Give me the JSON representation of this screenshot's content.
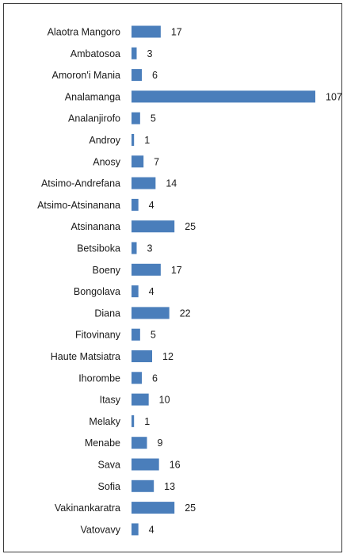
{
  "chart_data": {
    "type": "bar",
    "orientation": "horizontal",
    "title": "",
    "xlabel": "",
    "ylabel": "",
    "categories": [
      "Alaotra Mangoro",
      "Ambatosoa",
      "Amoron'i Mania",
      "Analamanga",
      "Analanjirofo",
      "Androy",
      "Anosy",
      "Atsimo-Andrefana",
      "Atsimo-Atsinanana",
      "Atsinanana",
      "Betsiboka",
      "Boeny",
      "Bongolava",
      "Diana",
      "Fitovinany",
      "Haute Matsiatra",
      "Ihorombe",
      "Itasy",
      "Melaky",
      "Menabe",
      "Sava",
      "Sofia",
      "Vakinankaratra",
      "Vatovavy"
    ],
    "values": [
      17,
      3,
      6,
      107,
      5,
      1,
      7,
      14,
      4,
      25,
      3,
      17,
      4,
      22,
      5,
      12,
      6,
      10,
      1,
      9,
      16,
      13,
      25,
      4
    ],
    "xlim": [
      0,
      107
    ],
    "grid": false,
    "legend": "none",
    "data_labels": true,
    "bar_color": "#4a7ebb"
  }
}
